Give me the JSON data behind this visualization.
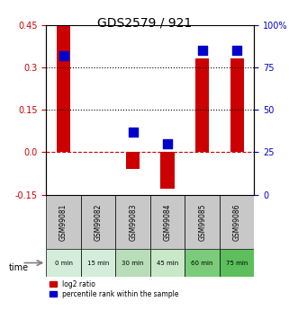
{
  "title": "GDS2579 / 921",
  "samples": [
    "GSM99081",
    "GSM99082",
    "GSM99083",
    "GSM99084",
    "GSM99085",
    "GSM99086"
  ],
  "time_labels": [
    "0 min",
    "15 min",
    "30 min",
    "45 min",
    "60 min",
    "75 min"
  ],
  "time_colors": [
    "#d4edda",
    "#d4edda",
    "#b8ddb8",
    "#c8e8c8",
    "#7acc7a",
    "#5cbf5c"
  ],
  "log2_ratio": [
    0.45,
    0.0,
    -0.06,
    -0.13,
    0.33,
    0.33
  ],
  "percentile_rank": [
    82,
    null,
    37,
    30,
    85,
    85
  ],
  "ylim_left": [
    -0.15,
    0.45
  ],
  "ylim_right": [
    0,
    100
  ],
  "bar_color": "#cc0000",
  "dot_color": "#0000cc",
  "bar_width": 0.4,
  "dot_size": 60,
  "hline_dashed_color": "#cc0000",
  "hline_dotted_color": "black",
  "hline_dotted_values": [
    0.15,
    0.3
  ],
  "left_yticks": [
    -0.15,
    0.0,
    0.15,
    0.3,
    0.45
  ],
  "right_yticks": [
    0,
    25,
    50,
    75,
    100
  ],
  "xlabel_color": "black",
  "title_color": "black",
  "left_tick_color": "#cc0000",
  "right_tick_color": "#0000cc",
  "grid_color": "#cccccc",
  "sample_bg_color": "#c8c8c8",
  "legend_red_label": "log2 ratio",
  "legend_blue_label": "percentile rank within the sample"
}
